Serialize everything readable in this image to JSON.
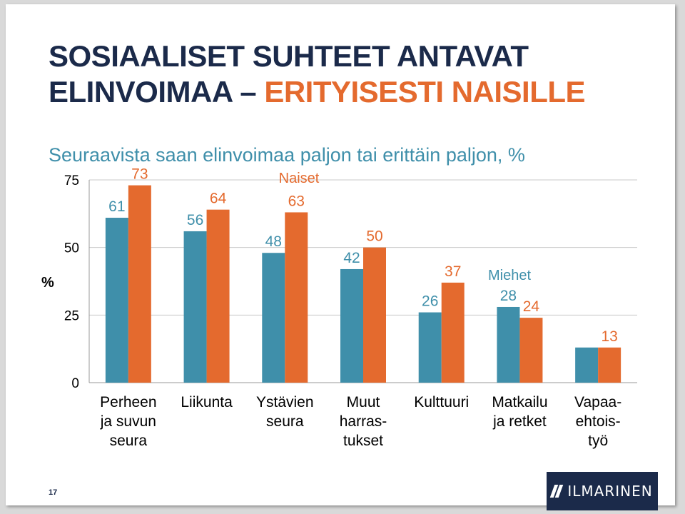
{
  "slide": {
    "title_line1": "SOSIAALISET SUHTEET ANTAVAT",
    "title_line2_part1": "ELINVOIMAA – ",
    "title_line2_part2": "ERITYISESTI NAISILLE",
    "subtitle": "Seuraavista saan elinvoimaa paljon tai erittäin paljon, %",
    "page_number": "17",
    "logo_text": "ILMARINEN",
    "colors": {
      "title": "#1b2a4a",
      "accent": "#e46a2e",
      "subtitle": "#3f8faa"
    }
  },
  "chart_data": {
    "type": "bar",
    "ylabel": "%",
    "ylim": [
      0,
      75
    ],
    "yticks": [
      0,
      25,
      50,
      75
    ],
    "grid": true,
    "categories": [
      [
        "Perheen",
        "ja suvun",
        "seura"
      ],
      [
        "Liikunta"
      ],
      [
        "Ystävien",
        "seura"
      ],
      [
        "Muut",
        "harras-",
        "tukset"
      ],
      [
        "Kulttuuri"
      ],
      [
        "Matkailu",
        "ja retket"
      ],
      [
        "Vapaa-",
        "ehtois-",
        "työ"
      ]
    ],
    "series": [
      {
        "name": "Miehet",
        "color": "#3f8faa",
        "values": [
          61,
          56,
          48,
          42,
          26,
          28,
          13
        ],
        "labels": [
          "61",
          "56",
          "48",
          "42",
          "26",
          "28",
          ""
        ]
      },
      {
        "name": "Naiset",
        "color": "#e46a2e",
        "values": [
          73,
          64,
          63,
          50,
          37,
          24,
          13
        ],
        "labels": [
          "73",
          "64",
          "63",
          "50",
          "37",
          "24",
          "13"
        ]
      }
    ]
  }
}
